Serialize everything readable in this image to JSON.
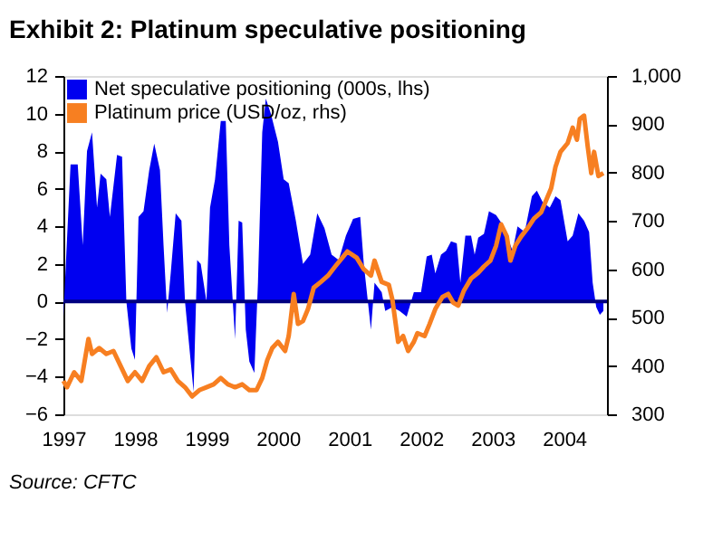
{
  "chart_data": {
    "type": "line",
    "title": "Exhibit 2: Platinum speculative positioning",
    "annotations": [
      "Source: CFTC"
    ],
    "xlim": [
      1997,
      2004.6
    ],
    "xticks": [
      1997,
      1998,
      1999,
      2000,
      2001,
      2002,
      2003,
      2004
    ],
    "ylim": [
      -6,
      12
    ],
    "yticks": [
      -6,
      -4,
      -2,
      0,
      2,
      4,
      6,
      8,
      10,
      12
    ],
    "y2lim": [
      300,
      1000
    ],
    "y2ticks": [
      300,
      400,
      500,
      600,
      700,
      800,
      900,
      {
        "value": 1000,
        "label": "1,000"
      }
    ],
    "legend": "top left",
    "grid": false,
    "ref_lines": [
      {
        "axis": "y",
        "value": 0,
        "color": "#000080"
      }
    ],
    "series": [
      {
        "name": "Net speculative positioning (000s, lhs)",
        "type": "area",
        "color": "#0000f0",
        "x": [
          1997.0,
          1997.05,
          1997.1,
          1997.2,
          1997.27,
          1997.33,
          1997.4,
          1997.47,
          1997.52,
          1997.6,
          1997.65,
          1997.75,
          1997.82,
          1997.88,
          1997.95,
          1998.0,
          1998.05,
          1998.12,
          1998.2,
          1998.27,
          1998.35,
          1998.4,
          1998.45,
          1998.5,
          1998.57,
          1998.65,
          1998.7,
          1998.75,
          1998.82,
          1998.87,
          1998.92,
          1999.0,
          1999.05,
          1999.12,
          1999.2,
          1999.27,
          1999.32,
          1999.4,
          1999.45,
          1999.5,
          1999.55,
          1999.6,
          1999.67,
          1999.72,
          1999.78,
          1999.83,
          1999.9,
          2000.0,
          2000.08,
          2000.15,
          2000.25,
          2000.35,
          2000.45,
          2000.55,
          2000.65,
          2000.75,
          2000.85,
          2000.95,
          2001.05,
          2001.15,
          2001.2,
          2001.3,
          2001.35,
          2001.45,
          2001.5,
          2001.6,
          2001.7,
          2001.8,
          2001.9,
          2002.0,
          2002.08,
          2002.15,
          2002.2,
          2002.28,
          2002.35,
          2002.42,
          2002.5,
          2002.55,
          2002.62,
          2002.7,
          2002.75,
          2002.8,
          2002.88,
          2002.95,
          2003.05,
          2003.12,
          2003.2,
          2003.28,
          2003.35,
          2003.45,
          2003.55,
          2003.62,
          2003.7,
          2003.8,
          2003.88,
          2003.95,
          2004.05,
          2004.12,
          2004.2,
          2004.28,
          2004.35,
          2004.4,
          2004.45,
          2004.5,
          2004.55
        ],
        "values": [
          -0.8,
          3.3,
          7.3,
          7.3,
          3,
          8,
          9,
          5,
          6.8,
          6.5,
          4.5,
          7.8,
          7.7,
          0,
          -2.5,
          -3.1,
          4.5,
          4.8,
          7,
          8.4,
          7,
          3,
          -0.6,
          1.5,
          4.7,
          4.3,
          0,
          -2,
          -4.8,
          2.2,
          2,
          0,
          5,
          6.5,
          9.6,
          9.6,
          3,
          -2,
          4.3,
          4.2,
          -1.5,
          -3.2,
          -3.8,
          1,
          9,
          10.8,
          10,
          8.5,
          6.5,
          6.3,
          4.3,
          2,
          2.5,
          4.7,
          3.9,
          2.5,
          2.2,
          3.5,
          4.4,
          4.5,
          2,
          -1.5,
          1,
          0.5,
          -0.5,
          -0.3,
          -0.5,
          -0.8,
          0.5,
          0.5,
          2.4,
          2.5,
          1.5,
          2.5,
          2.7,
          3.2,
          3.1,
          1,
          3.5,
          3.5,
          2.5,
          3.4,
          3.6,
          4.8,
          4.6,
          4.2,
          3.5,
          2.7,
          4,
          3.7,
          5.6,
          5.9,
          5.3,
          5,
          5.6,
          5.4,
          3.2,
          3.5,
          4.7,
          4.3,
          3.7,
          1,
          -0.3,
          -0.7,
          -0.5
        ]
      },
      {
        "name": "Platinum price (USD/oz, rhs)",
        "axis": "y2",
        "line_style": "solid",
        "color": "#f77f21",
        "x": [
          1997.0,
          1997.05,
          1997.15,
          1997.25,
          1997.35,
          1997.4,
          1997.5,
          1997.6,
          1997.7,
          1997.8,
          1997.9,
          1998.0,
          1998.1,
          1998.2,
          1998.3,
          1998.4,
          1998.5,
          1998.6,
          1998.7,
          1998.8,
          1998.9,
          1999.0,
          1999.1,
          1999.2,
          1999.3,
          1999.4,
          1999.5,
          1999.6,
          1999.7,
          1999.78,
          1999.85,
          1999.92,
          2000.0,
          2000.1,
          2000.15,
          2000.22,
          2000.28,
          2000.35,
          2000.42,
          2000.5,
          2000.6,
          2000.7,
          2000.8,
          2000.9,
          2000.97,
          2001.1,
          2001.2,
          2001.3,
          2001.35,
          2001.45,
          2001.55,
          2001.6,
          2001.68,
          2001.75,
          2001.82,
          2001.9,
          2001.95,
          2002.05,
          2002.12,
          2002.2,
          2002.3,
          2002.38,
          2002.45,
          2002.52,
          2002.6,
          2002.7,
          2002.8,
          2002.88,
          2002.97,
          2003.05,
          2003.12,
          2003.2,
          2003.25,
          2003.32,
          2003.4,
          2003.5,
          2003.58,
          2003.68,
          2003.75,
          2003.82,
          2003.88,
          2003.95,
          2004.05,
          2004.12,
          2004.18,
          2004.22,
          2004.28,
          2004.33,
          2004.38,
          2004.42,
          2004.48,
          2004.55
        ],
        "values": [
          369,
          356,
          387,
          369,
          456,
          425,
          437,
          425,
          431,
          400,
          369,
          387,
          369,
          400,
          418,
          387,
          393,
          369,
          356,
          337,
          350,
          356,
          362,
          375,
          362,
          356,
          362,
          350,
          350,
          375,
          412,
          437,
          450,
          431,
          462,
          549,
          487,
          493,
          518,
          562,
          574,
          587,
          606,
          624,
          637,
          624,
          600,
          587,
          618,
          574,
          568,
          537,
          450,
          462,
          431,
          450,
          468,
          462,
          487,
          518,
          543,
          549,
          531,
          525,
          556,
          581,
          593,
          606,
          618,
          649,
          693,
          668,
          618,
          649,
          668,
          687,
          705,
          718,
          743,
          768,
          812,
          843,
          861,
          893,
          868,
          911,
          918,
          855,
          799,
          843,
          793,
          799
        ]
      }
    ]
  }
}
